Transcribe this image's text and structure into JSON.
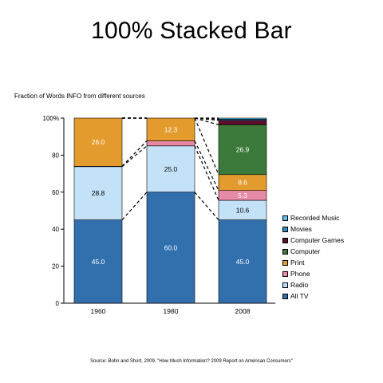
{
  "title": "100% Stacked Bar",
  "subtitle": "Fraction of Words INFO from different sources",
  "source": "Source: Bohn and Short, 2009, \"How Much Information? 2009 Report on American Consumers\"",
  "chart_data": {
    "type": "bar",
    "stacked": "percent",
    "categories": [
      "1960",
      "1980",
      "2008"
    ],
    "ylim": [
      0,
      100
    ],
    "yticks": [
      "0",
      "20",
      "40",
      "60",
      "80",
      "100%"
    ],
    "series": [
      {
        "name": "All TV",
        "color": "#3270ad",
        "values": [
          45.0,
          60.0,
          45.0
        ],
        "labels": [
          "45.0",
          "60.0",
          "45.0"
        ]
      },
      {
        "name": "Radio",
        "color": "#c3e2f8",
        "values": [
          28.8,
          25.0,
          10.6
        ],
        "labels": [
          "28.8",
          "25.0",
          "10.6"
        ]
      },
      {
        "name": "Phone",
        "color": "#e78aa5",
        "values": [
          0.2,
          2.7,
          5.3
        ],
        "labels": [
          "",
          "",
          "5.3"
        ]
      },
      {
        "name": "Print",
        "color": "#e49b2e",
        "values": [
          26.0,
          12.3,
          8.6
        ],
        "labels": [
          "26.0",
          "12.3",
          "8.6"
        ]
      },
      {
        "name": "Computer",
        "color": "#3c7a3b",
        "values": [
          0,
          0,
          26.9
        ],
        "labels": [
          "",
          "",
          "26.9"
        ]
      },
      {
        "name": "Computer Games",
        "color": "#5c0e2a",
        "values": [
          0,
          0,
          2.4
        ],
        "labels": [
          "",
          "",
          ""
        ]
      },
      {
        "name": "Movies",
        "color": "#2a8fc6",
        "values": [
          0,
          0,
          0.6
        ],
        "labels": [
          "",
          "",
          ""
        ]
      },
      {
        "name": "Recorded Music",
        "color": "#5bc0e8",
        "values": [
          0,
          0,
          0.6
        ],
        "labels": [
          "",
          "",
          ""
        ]
      }
    ],
    "legend_order": [
      "Recorded Music",
      "Movies",
      "Computer Games",
      "Computer",
      "Print",
      "Phone",
      "Radio",
      "All TV"
    ],
    "legend_position": "right"
  }
}
